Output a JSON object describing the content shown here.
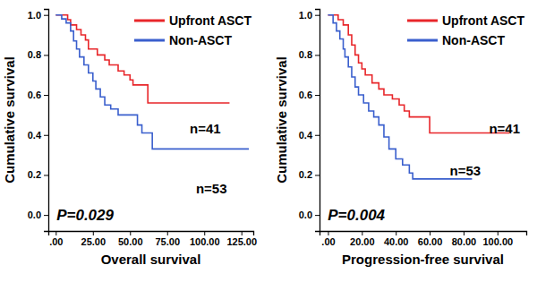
{
  "chart_data": [
    {
      "type": "line",
      "line_style": "step",
      "legend": "upper right",
      "x_label": "Overall survival",
      "y_label": "Cumulative survival",
      "xlim": [
        -5,
        133
      ],
      "ylim": [
        -0.08,
        1.03
      ],
      "xticks": [
        {
          "value": 0,
          "label": ".00"
        },
        {
          "value": 25,
          "label": "25.00"
        },
        {
          "value": 50,
          "label": "50.00"
        },
        {
          "value": 75,
          "label": "75.00"
        },
        {
          "value": 100,
          "label": "100.00"
        },
        {
          "value": 125,
          "label": "125.00"
        }
      ],
      "yticks": [
        {
          "value": 0,
          "label": "0.0"
        },
        {
          "value": 0.2,
          "label": "0.2"
        },
        {
          "value": 0.4,
          "label": "0.4"
        },
        {
          "value": 0.6,
          "label": "0.6"
        },
        {
          "value": 0.8,
          "label": "0.8"
        },
        {
          "value": 1,
          "label": "1.0"
        }
      ],
      "annotations": [
        "n=41",
        "n=53",
        "P=0.029"
      ],
      "series": [
        {
          "name": "Upfront ASCT",
          "color": "#e8262a",
          "x": [
            0,
            8,
            10,
            14,
            17,
            20,
            22,
            28,
            33,
            36,
            42,
            46,
            50,
            52,
            62,
            117
          ],
          "values": [
            1.0,
            0.976,
            0.95,
            0.927,
            0.9,
            0.875,
            0.83,
            0.8,
            0.775,
            0.75,
            0.72,
            0.7,
            0.675,
            0.65,
            0.56,
            0.56
          ]
        },
        {
          "name": "Non-ASCT",
          "color": "#3a5fcd",
          "x": [
            0,
            4,
            7,
            10,
            12,
            14,
            16,
            19,
            22,
            25,
            27,
            30,
            33,
            37,
            42,
            55,
            58,
            65,
            130
          ],
          "values": [
            1.0,
            0.98,
            0.96,
            0.92,
            0.87,
            0.83,
            0.79,
            0.75,
            0.71,
            0.67,
            0.63,
            0.59,
            0.55,
            0.53,
            0.5,
            0.45,
            0.41,
            0.33,
            0.33
          ]
        }
      ]
    },
    {
      "type": "line",
      "line_style": "step",
      "legend": "upper right",
      "x_label": "Progression-free survival",
      "y_label": "Cumulative survival",
      "xlim": [
        -5,
        117
      ],
      "ylim": [
        -0.08,
        1.03
      ],
      "xticks": [
        {
          "value": 0,
          "label": ".00"
        },
        {
          "value": 20,
          "label": "20.00"
        },
        {
          "value": 40,
          "label": "40.00"
        },
        {
          "value": 60,
          "label": "60.00"
        },
        {
          "value": 80,
          "label": "80.00"
        },
        {
          "value": 100,
          "label": "100.00"
        }
      ],
      "yticks": [
        {
          "value": 0,
          "label": "0.0"
        },
        {
          "value": 0.2,
          "label": "0.2"
        },
        {
          "value": 0.4,
          "label": "0.4"
        },
        {
          "value": 0.6,
          "label": "0.6"
        },
        {
          "value": 0.8,
          "label": "0.8"
        },
        {
          "value": 1,
          "label": "1.0"
        }
      ],
      "annotations": [
        "n=41",
        "n=53",
        "P=0.004"
      ],
      "series": [
        {
          "name": "Upfront ASCT",
          "color": "#e8262a",
          "x": [
            0,
            6,
            9,
            12,
            14,
            16,
            18,
            20,
            22,
            26,
            30,
            33,
            38,
            42,
            45,
            48,
            60,
            107
          ],
          "values": [
            1.0,
            0.976,
            0.95,
            0.9,
            0.85,
            0.8,
            0.76,
            0.73,
            0.7,
            0.66,
            0.63,
            0.6,
            0.58,
            0.55,
            0.52,
            0.49,
            0.41,
            0.41
          ]
        },
        {
          "name": "Non-ASCT",
          "color": "#3a5fcd",
          "x": [
            0,
            3,
            5,
            7,
            9,
            10,
            12,
            14,
            16,
            18,
            21,
            24,
            27,
            30,
            33,
            36,
            40,
            44,
            48,
            50,
            85
          ],
          "values": [
            1.0,
            0.96,
            0.92,
            0.88,
            0.83,
            0.79,
            0.74,
            0.69,
            0.64,
            0.6,
            0.56,
            0.52,
            0.49,
            0.45,
            0.39,
            0.33,
            0.28,
            0.25,
            0.21,
            0.18,
            0.18
          ]
        }
      ]
    }
  ]
}
